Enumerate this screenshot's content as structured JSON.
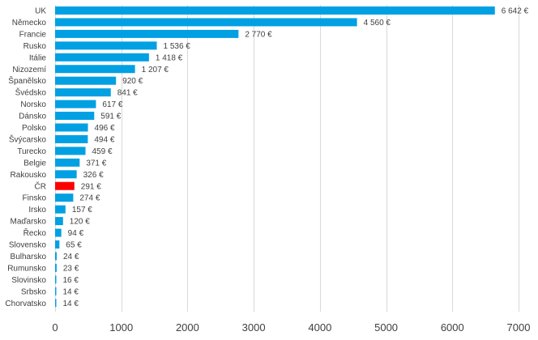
{
  "chart_data": {
    "type": "bar",
    "orientation": "horizontal",
    "title": "",
    "xlabel": "",
    "ylabel": "",
    "categories": [
      "UK",
      "Německo",
      "Francie",
      "Rusko",
      "Itálie",
      "Nizozemí",
      "Španělsko",
      "Švédsko",
      "Norsko",
      "Dánsko",
      "Polsko",
      "Švýcarsko",
      "Turecko",
      "Belgie",
      "Rakousko",
      "ČR",
      "Finsko",
      "Irsko",
      "Maďarsko",
      "Řecko",
      "Slovensko",
      "Bulharsko",
      "Rumunsko",
      "Slovinsko",
      "Srbsko",
      "Chorvatsko"
    ],
    "values": [
      6642,
      4560,
      2770,
      1536,
      1418,
      1207,
      920,
      841,
      617,
      591,
      496,
      494,
      459,
      371,
      326,
      291,
      274,
      157,
      120,
      94,
      65,
      24,
      23,
      16,
      14,
      14
    ],
    "value_labels": [
      "6 642 €",
      "4 560 €",
      "2 770 €",
      "1 536 €",
      "1 418 €",
      "1 207 €",
      "920 €",
      "841 €",
      "617 €",
      "591 €",
      "496 €",
      "494 €",
      "459 €",
      "371 €",
      "326 €",
      "291 €",
      "274 €",
      "157 €",
      "120 €",
      "94 €",
      "65 €",
      "24 €",
      "23 €",
      "16 €",
      "14 €",
      "14 €"
    ],
    "x_ticks": [
      "0",
      "1000",
      "2000",
      "3000",
      "4000",
      "5000",
      "6000",
      "7000"
    ],
    "xlim": [
      0,
      7000
    ],
    "grid": "vertical",
    "legend": "none",
    "colors": {
      "bar": "#00a0e3",
      "highlight": "#ff0000",
      "grid": "#d9d9d9",
      "text": "#404040"
    },
    "highlight_category": "ČR"
  }
}
